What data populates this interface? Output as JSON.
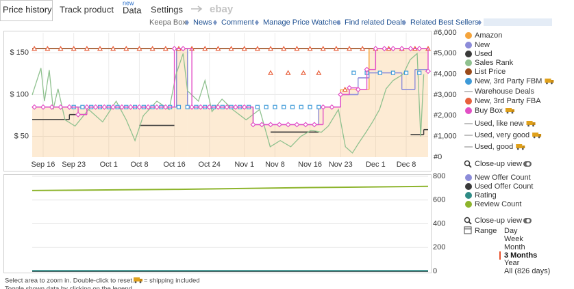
{
  "tabs": [
    "Price history",
    "Track product",
    "Data",
    "Settings"
  ],
  "new_badge": "new",
  "ebay": "ebay",
  "links": [
    "Keepa Box",
    "News",
    "Comment",
    "Manage Price Watches",
    "Find related Deals",
    "Related Best Sellers"
  ],
  "chart_data": [
    {
      "type": "line",
      "xlim": [
        256.5,
        347
      ],
      "xticks": [
        {
          "value": 259,
          "label": "Sep 16"
        },
        {
          "value": 266,
          "label": "Sep 23"
        },
        {
          "value": 274,
          "label": "Oct 1"
        },
        {
          "value": 281,
          "label": "Oct 8"
        },
        {
          "value": 289,
          "label": "Oct 16"
        },
        {
          "value": 297,
          "label": "Oct 24"
        },
        {
          "value": 305,
          "label": "Nov 1"
        },
        {
          "value": 312,
          "label": "Nov 8"
        },
        {
          "value": 320,
          "label": "Nov 16"
        },
        {
          "value": 327,
          "label": "Nov 23"
        },
        {
          "value": 335,
          "label": "Dec 1"
        },
        {
          "value": 342,
          "label": "Dec 8"
        }
      ],
      "ylim": [
        25,
        174
      ],
      "yticks": [
        {
          "value": 50,
          "label": "$ 50"
        },
        {
          "value": 100,
          "label": "$ 100"
        },
        {
          "value": 150,
          "label": "$ 150"
        }
      ],
      "y2lim": [
        0,
        6000
      ],
      "y2ticks": [
        {
          "value": 0,
          "label": "#0"
        },
        {
          "value": 1000,
          "label": "#1,000"
        },
        {
          "value": 2000,
          "label": "#2,000"
        },
        {
          "value": 3000,
          "label": "#3,000"
        },
        {
          "value": 4000,
          "label": "#4,000"
        },
        {
          "value": 5000,
          "label": "#5,000"
        },
        {
          "value": 6000,
          "label": "#6,000"
        }
      ],
      "grid": true,
      "series": [
        {
          "name": "Amazon",
          "color": "#f5a43b",
          "style": "area",
          "x": [
            256.5,
            289.5,
            292,
            307,
            322,
            327,
            333.5
          ],
          "values": [
            85,
            155,
            85,
            64,
            85,
            106,
            155
          ]
        },
        {
          "name": "New",
          "color": "#8c8cd9",
          "style": "step",
          "x": [
            256.5,
            289.5,
            292,
            307,
            322,
            327,
            331,
            333.5,
            341,
            344
          ],
          "values": [
            85,
            155,
            85,
            64,
            85,
            100,
            120,
            126,
            106,
            130
          ]
        },
        {
          "name": "Used",
          "color": "#3a3a3a",
          "style": "step",
          "x": [
            256.5,
            265,
            269,
            281,
            289,
            311,
            322,
            343,
            346
          ],
          "values": [
            70,
            76,
            null,
            63,
            null,
            55,
            null,
            52,
            58
          ]
        },
        {
          "name": "Sales Rank",
          "color": "#8fc18f",
          "style": "line",
          "axis": "y2",
          "x": [
            256.5,
            258.5,
            259.3,
            260.4,
            261.3,
            262.4,
            264,
            266.3,
            269.4,
            272.6,
            275.7,
            278,
            280,
            281.9,
            285,
            287.8,
            289.4,
            291,
            292,
            294.5,
            296,
            297.6,
            299.9,
            302.3,
            305.4,
            308.5,
            310.9,
            313.2,
            315.6,
            317.9,
            320.3,
            322.6,
            324.2,
            326.5,
            328.1,
            329.7,
            331.2,
            332.8,
            334.3,
            335.9,
            337.4,
            339,
            341.3,
            342.9,
            344.5,
            345.3,
            346
          ],
          "values": [
            3000,
            4300,
            2700,
            4200,
            2300,
            3300,
            1800,
            1500,
            2300,
            1700,
            2700,
            1800,
            800,
            2000,
            2700,
            2300,
            4000,
            5000,
            3200,
            2700,
            3700,
            2200,
            2800,
            2300,
            1800,
            2300,
            500,
            800,
            500,
            1000,
            1300,
            1200,
            1500,
            2300,
            500,
            200,
            700,
            1200,
            1700,
            2300,
            3300,
            3700,
            4000,
            4700,
            5000,
            1000,
            4000
          ]
        },
        {
          "name": "List Price",
          "color": "#9a4a1a",
          "style": "step",
          "x": [
            256.5
          ],
          "values": [
            155
          ]
        },
        {
          "name": "New, 3rd Party FBM",
          "color": "#3d9ad8",
          "style": "markers",
          "marker": "square",
          "shipping_included": true,
          "x": [
            266,
            268,
            270,
            272,
            274,
            276,
            278,
            280,
            282,
            284,
            286,
            288,
            290,
            292,
            294,
            296,
            298,
            300,
            302,
            304,
            306,
            308,
            310,
            312,
            314,
            316,
            318,
            320,
            322,
            330,
            333,
            336,
            339,
            342,
            345
          ],
          "values": [
            85,
            85,
            85,
            85,
            85,
            85,
            85,
            85,
            85,
            85,
            85,
            85,
            85,
            85,
            85,
            85,
            85,
            85,
            85,
            85,
            85,
            85,
            85,
            85,
            85,
            85,
            85,
            85,
            85,
            126,
            126,
            126,
            126,
            126,
            126
          ]
        },
        {
          "name": "Warehouse Deals",
          "color": "#aaaaaa",
          "style": "step",
          "x": [],
          "values": []
        },
        {
          "name": "New, 3rd Party FBA",
          "color": "#e8603c",
          "style": "markers",
          "marker": "triangle",
          "x": [
            257,
            260,
            263,
            266,
            269,
            272,
            275,
            278,
            281,
            284,
            287,
            290,
            293,
            296,
            299,
            302,
            305,
            308,
            311,
            314,
            317,
            320,
            323,
            326,
            329,
            332,
            335,
            338,
            341,
            344,
            347,
            311,
            315,
            318.5,
            322,
            328
          ],
          "values": [
            155,
            155,
            155,
            155,
            155,
            155,
            155,
            155,
            155,
            155,
            155,
            155,
            155,
            155,
            155,
            155,
            155,
            155,
            155,
            155,
            155,
            155,
            155,
            155,
            155,
            155,
            155,
            155,
            155,
            155,
            155,
            126,
            126,
            126,
            126,
            106
          ]
        },
        {
          "name": "Buy Box",
          "color": "#e24fc5",
          "style": "step",
          "marker": "diamond",
          "shipping_included": true,
          "x": [
            257,
            259,
            261,
            263,
            265,
            267,
            269,
            271,
            273,
            275,
            277,
            279,
            281,
            283,
            285,
            287,
            289,
            291,
            293,
            295,
            297,
            299,
            301,
            303,
            305,
            307,
            309,
            311,
            313,
            315,
            317,
            319,
            321,
            323,
            325,
            327,
            329,
            331,
            333,
            335,
            337,
            339,
            341,
            343,
            345,
            347
          ],
          "values": [
            85,
            85,
            85,
            85,
            85,
            76,
            85,
            85,
            85,
            85,
            85,
            85,
            85,
            85,
            85,
            85,
            155,
            155,
            85,
            85,
            85,
            85,
            85,
            85,
            85,
            64,
            64,
            64,
            64,
            64,
            64,
            64,
            64,
            85,
            85,
            100,
            108,
            106,
            130,
            155,
            155,
            155,
            155,
            155,
            155,
            128
          ]
        },
        {
          "name": "Used, like new",
          "color": "#aaaaaa",
          "style": "step",
          "shipping_included": true,
          "x": [],
          "values": []
        },
        {
          "name": "Used, very good",
          "color": "#aaaaaa",
          "style": "step",
          "shipping_included": true,
          "x": [],
          "values": []
        },
        {
          "name": "Used, good",
          "color": "#aaaaaa",
          "style": "step",
          "shipping_included": true,
          "x": [],
          "values": []
        }
      ]
    },
    {
      "type": "line",
      "xlim": [
        256.5,
        347
      ],
      "ylim": [
        0,
        800
      ],
      "yticks": [
        0,
        200,
        400,
        600,
        800
      ],
      "y_axis_position": "right",
      "grid": true,
      "series": [
        {
          "name": "New Offer Count",
          "color": "#8c8cd9",
          "style": "line",
          "x": [
            256.5,
            347
          ],
          "values": [
            2,
            2
          ]
        },
        {
          "name": "Used Offer Count",
          "color": "#3a3a3a",
          "style": "line",
          "x": [
            256.5,
            347
          ],
          "values": [
            1,
            1
          ]
        },
        {
          "name": "Rating",
          "color": "#2e8b85",
          "style": "line",
          "x": [
            256.5,
            347
          ],
          "values": [
            4.5,
            4.5
          ]
        },
        {
          "name": "Review Count",
          "color": "#8db42c",
          "style": "line",
          "x": [
            256.5,
            290,
            320,
            347
          ],
          "values": [
            680,
            690,
            705,
            715
          ]
        }
      ]
    }
  ],
  "controls": {
    "close_up": "Close-up view",
    "range_label": "Range",
    "ranges": [
      "Day",
      "Week",
      "Month",
      "3 Months",
      "Year",
      "All (826 days)"
    ],
    "selected_range": "3 Months"
  },
  "footer": {
    "hint": "Select area to zoom in. Double-click to reset.",
    "shipping": "= shipping included",
    "toggle": "Toggle shown data by clicking on the legend"
  }
}
